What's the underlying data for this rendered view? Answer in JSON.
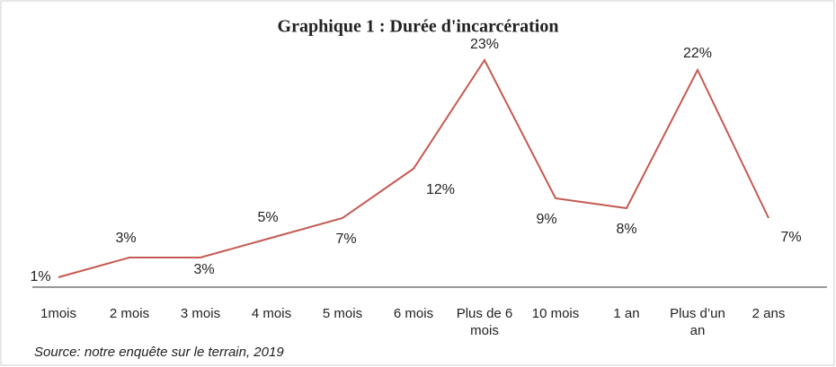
{
  "chart_data": {
    "type": "line",
    "title": "Graphique 1 : Durée d'incarcération",
    "categories": [
      "1mois",
      "2 mois",
      "3 mois",
      "4 mois",
      "5 mois",
      "6 mois",
      "Plus de 6 mois",
      "10 mois",
      "1 an",
      "Plus d’un an",
      "2 ans"
    ],
    "series": [
      {
        "name": "Durée d'incarcération",
        "color": "#c55a52",
        "values": [
          1,
          3,
          3,
          5,
          7,
          12,
          23,
          9,
          8,
          22,
          7
        ],
        "value_labels": [
          "1%",
          "3%",
          "3%",
          "5%",
          "7%",
          "12%",
          "23%",
          "9%",
          "8%",
          "22%",
          "7%"
        ]
      }
    ],
    "ylim": [
      0,
      25
    ],
    "grid": false,
    "source": "Source: notre enquête sur le terrain, 2019"
  }
}
